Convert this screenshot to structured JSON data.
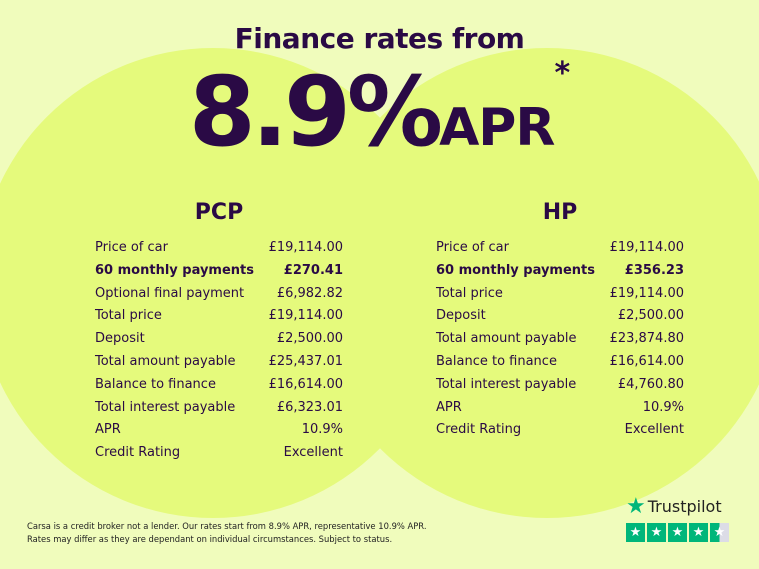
{
  "headline": {
    "title": "Finance rates from",
    "rate": "8.9%",
    "suffix": "APR",
    "asterisk": "*"
  },
  "pcp": {
    "heading": "PCP",
    "rows": [
      {
        "label": "Price of car",
        "value": "£19,114.00",
        "bold": false
      },
      {
        "label": "60 monthly payments",
        "value": "£270.41",
        "bold": true
      },
      {
        "label": "Optional final payment",
        "value": "£6,982.82",
        "bold": false
      },
      {
        "label": "Total price",
        "value": "£19,114.00",
        "bold": false
      },
      {
        "label": "Deposit",
        "value": "£2,500.00",
        "bold": false
      },
      {
        "label": "Total amount payable",
        "value": "£25,437.01",
        "bold": false
      },
      {
        "label": "Balance to finance",
        "value": "£16,614.00",
        "bold": false
      },
      {
        "label": "Total interest payable",
        "value": "£6,323.01",
        "bold": false
      },
      {
        "label": "APR",
        "value": "10.9%",
        "bold": false
      },
      {
        "label": "Credit Rating",
        "value": "Excellent",
        "bold": false
      }
    ]
  },
  "hp": {
    "heading": "HP",
    "rows": [
      {
        "label": "Price of car",
        "value": "£19,114.00",
        "bold": false
      },
      {
        "label": "60 monthly payments",
        "value": "£356.23",
        "bold": true
      },
      {
        "label": "Total price",
        "value": "£19,114.00",
        "bold": false
      },
      {
        "label": "Deposit",
        "value": "£2,500.00",
        "bold": false
      },
      {
        "label": "Total amount payable",
        "value": "£23,874.80",
        "bold": false
      },
      {
        "label": "Balance to finance",
        "value": "£16,614.00",
        "bold": false
      },
      {
        "label": "Total interest payable",
        "value": "£4,760.80",
        "bold": false
      },
      {
        "label": "APR",
        "value": "10.9%",
        "bold": false
      },
      {
        "label": "Credit Rating",
        "value": "Excellent",
        "bold": false
      }
    ]
  },
  "disclaimer": {
    "line1": "Carsa is a credit broker not a lender. Our rates start from 8.9% APR, representative 10.9% APR.",
    "line2": "Rates may differ as they are dependant on individual circumstances. Subject to status."
  },
  "trustpilot": {
    "name": "Trustpilot",
    "rating": 4.5,
    "max": 5,
    "icon": "star-icon",
    "color": "#00b67a"
  },
  "colors": {
    "background": "#f0fcbc",
    "circles": "#e5fa7c",
    "text": "#2a0a45"
  }
}
